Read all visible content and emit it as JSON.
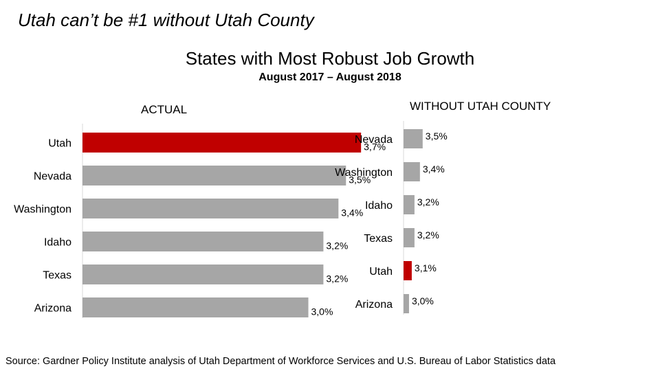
{
  "headline": "Utah can’t be #1 without Utah County",
  "title": "States with Most Robust Job Growth",
  "subtitle": "August 2017 – August 2018",
  "source": "Source:  Gardner Policy Institute analysis of Utah Department of Workforce Services and U.S. Bureau of Labor Statistics data",
  "colors": {
    "highlight": "#c00000",
    "bar": "#a6a6a6",
    "axis": "#d9d9d9"
  },
  "chart_data": [
    {
      "type": "bar",
      "orientation": "horizontal",
      "title": "ACTUAL",
      "categories": [
        "Utah",
        "Nevada",
        "Washington",
        "Idaho",
        "Texas",
        "Arizona"
      ],
      "values": [
        3.7,
        3.5,
        3.4,
        3.2,
        3.2,
        3.0
      ],
      "value_labels": [
        "3,7%",
        "3,5%",
        "3,4%",
        "3,2%",
        "3,2%",
        "3,0%"
      ],
      "highlight": "Utah",
      "unit": "%"
    },
    {
      "type": "bar",
      "orientation": "horizontal",
      "title": "WITHOUT UTAH COUNTY",
      "categories": [
        "Nevada",
        "Washington",
        "Idaho",
        "Texas",
        "Utah",
        "Arizona"
      ],
      "values": [
        3.5,
        3.4,
        3.2,
        3.2,
        3.1,
        3.0
      ],
      "value_labels": [
        "3,5%",
        "3,4%",
        "3,2%",
        "3,2%",
        "3,1%",
        "3,0%"
      ],
      "highlight": "Utah",
      "unit": "%"
    }
  ]
}
